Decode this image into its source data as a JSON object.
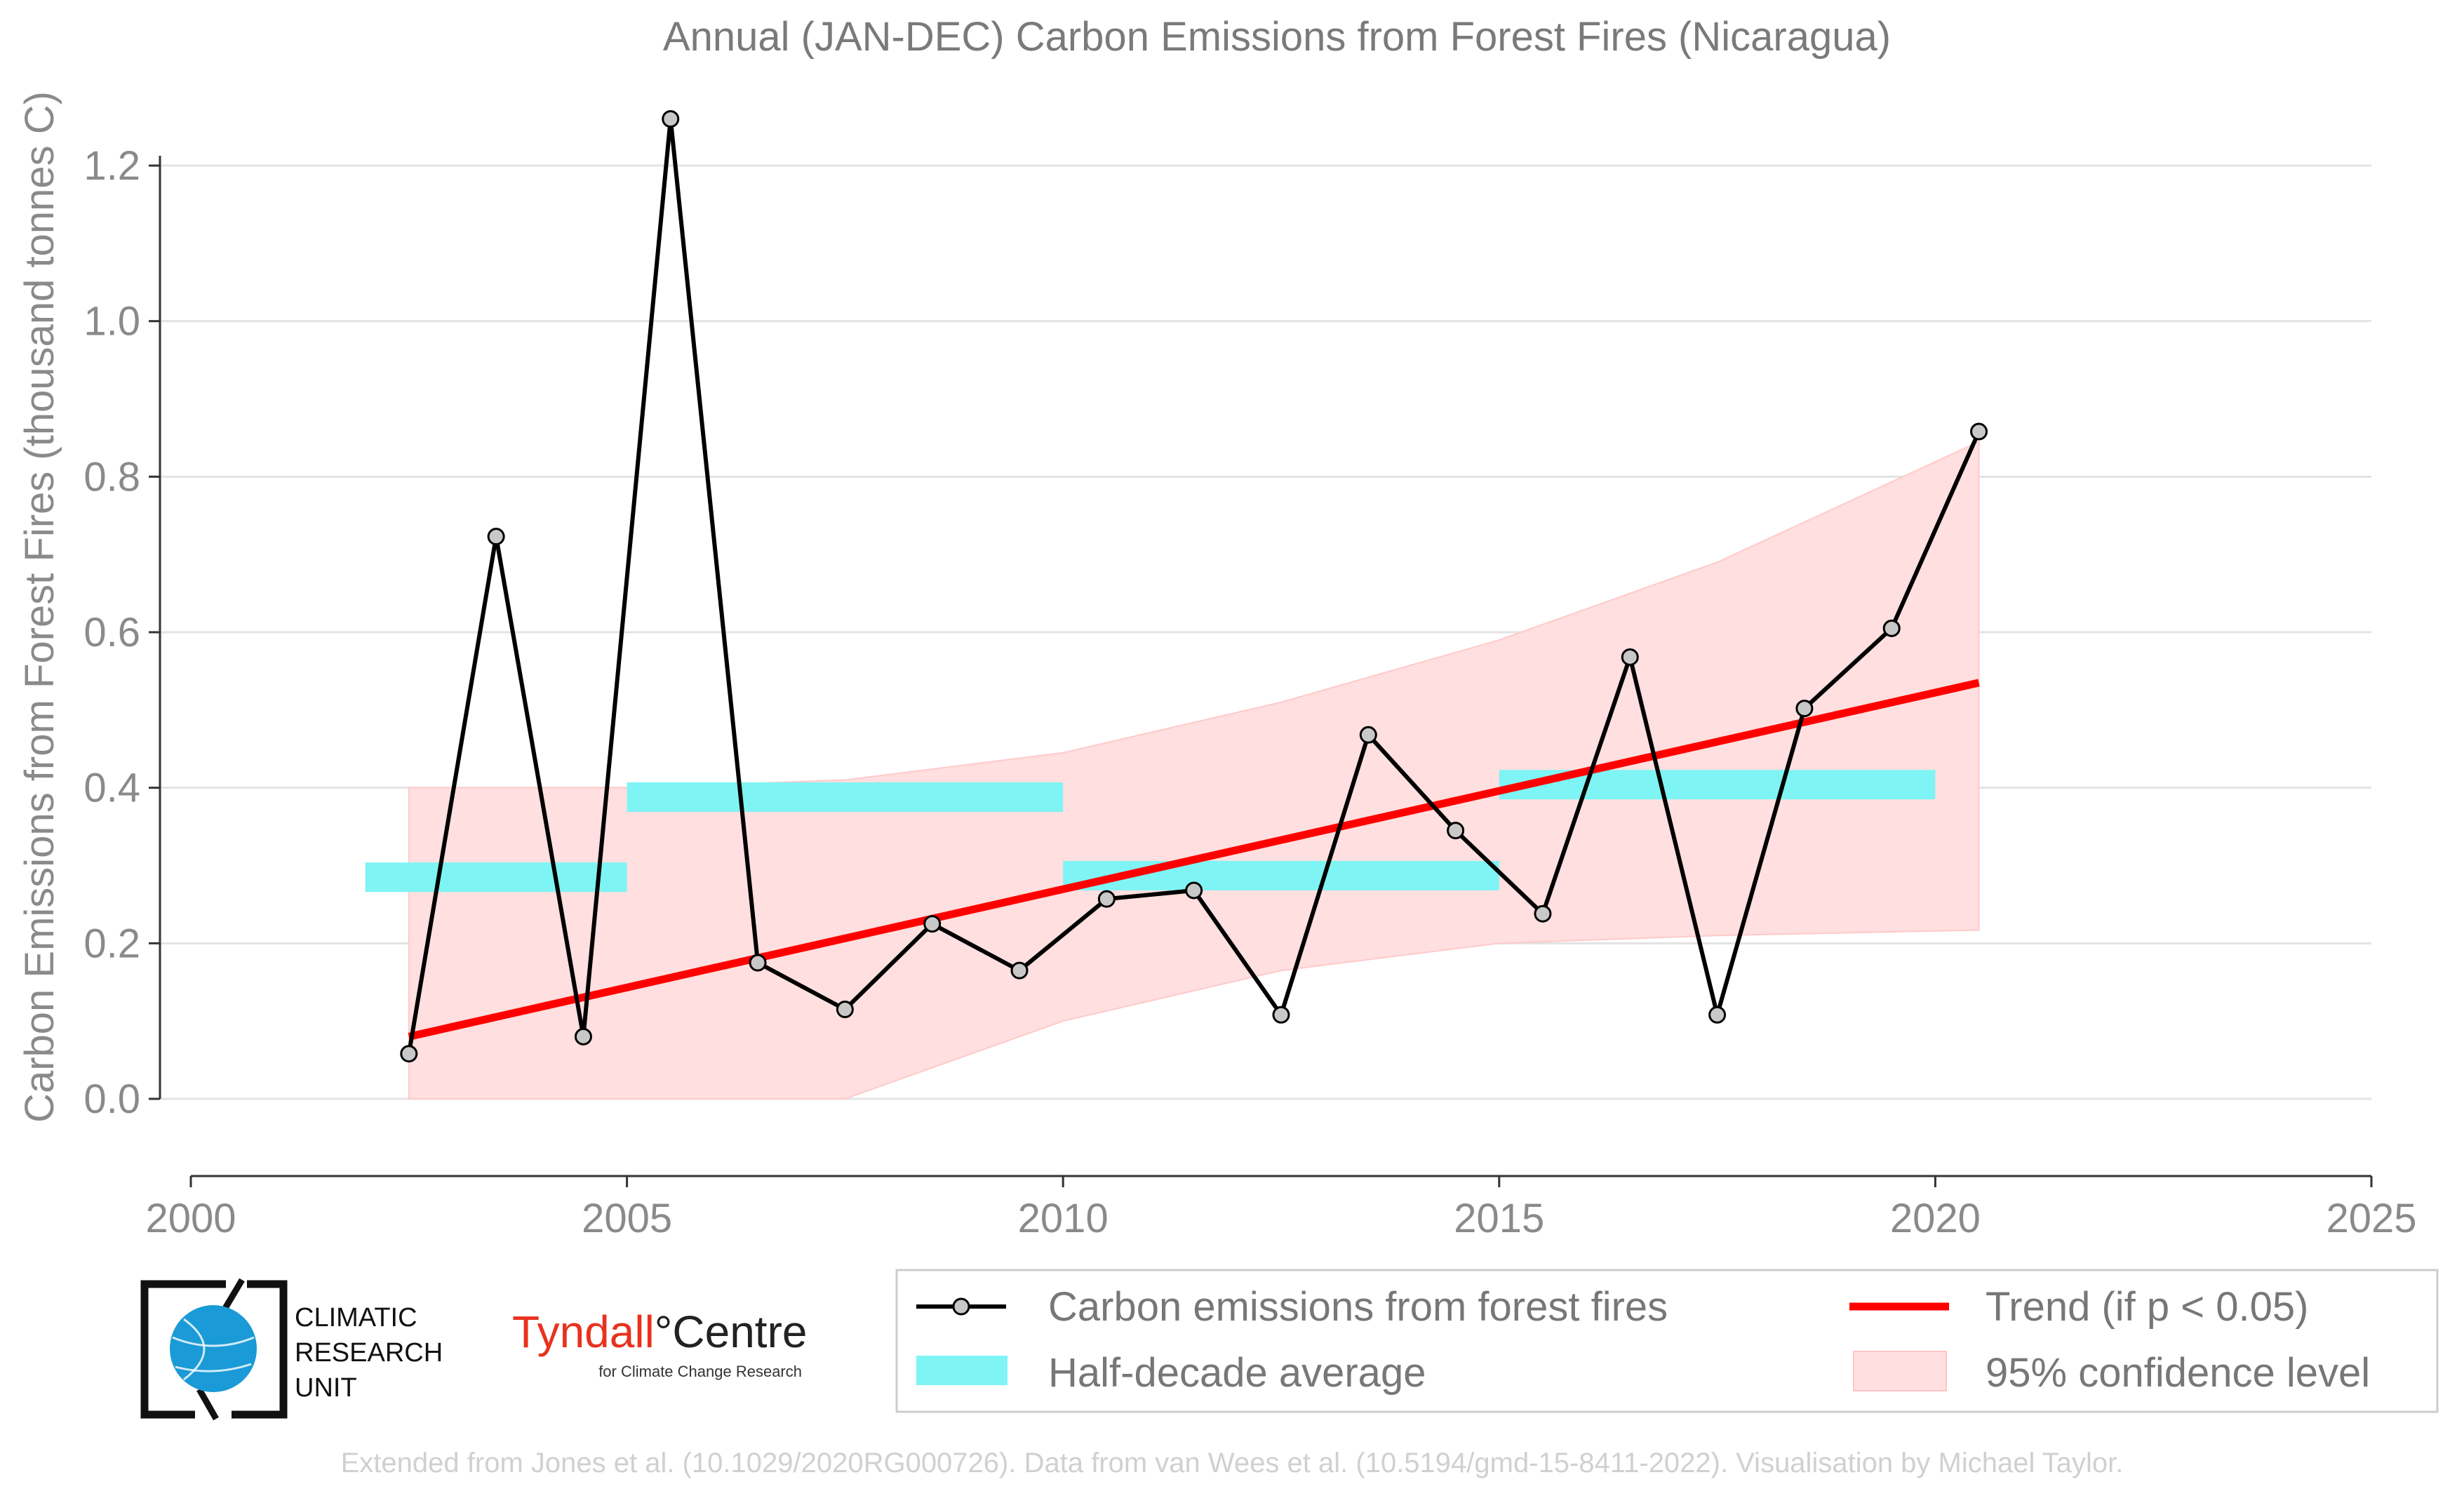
{
  "chart_data": {
    "type": "line",
    "title": "Annual (JAN-DEC) Carbon Emissions from Forest Fires (Nicaragua)",
    "xlabel": "",
    "ylabel": "Carbon Emissions from Forest Fires (thousand tonnes C)",
    "xlim": [
      2000,
      2025
    ],
    "ylim": [
      -0.1,
      1.3
    ],
    "xticks": [
      2000,
      2005,
      2010,
      2015,
      2020,
      2025
    ],
    "xtick_labels": [
      "2000",
      "2005",
      "2010",
      "2015",
      "2020",
      "2025"
    ],
    "yticks": [
      0.0,
      0.2,
      0.4,
      0.6,
      0.8,
      1.0,
      1.2
    ],
    "ytick_labels": [
      "0.0",
      "0.2",
      "0.4",
      "0.6",
      "0.8",
      "1.0",
      "1.2"
    ],
    "grid": "horizontal",
    "series": [
      {
        "name": "Carbon emissions from forest fires",
        "kind": "line-markers",
        "color": "#000000",
        "marker_color": "#c8c8c8",
        "x": [
          2002.5,
          2003.5,
          2004.5,
          2005.5,
          2006.5,
          2007.5,
          2008.5,
          2009.5,
          2010.5,
          2011.5,
          2012.5,
          2013.5,
          2014.5,
          2015.5,
          2016.5,
          2017.5,
          2018.5,
          2019.5,
          2020.5
        ],
        "y": [
          0.058,
          0.723,
          0.08,
          1.26,
          0.175,
          0.115,
          0.225,
          0.165,
          0.257,
          0.268,
          0.108,
          0.468,
          0.345,
          0.238,
          0.568,
          0.108,
          0.502,
          0.605,
          0.858
        ]
      },
      {
        "name": "Half-decade average",
        "kind": "bars",
        "color": "#7ff4f4",
        "segments": [
          {
            "x": [
              2002,
              2005
            ],
            "y": 0.285
          },
          {
            "x": [
              2005,
              2010
            ],
            "y": 0.388
          },
          {
            "x": [
              2010,
              2015
            ],
            "y": 0.287
          },
          {
            "x": [
              2015,
              2020
            ],
            "y": 0.404
          }
        ]
      },
      {
        "name": "Trend (if p < 0.05)",
        "kind": "line",
        "color": "#ff0000",
        "x": [
          2002.5,
          2020.5
        ],
        "y": [
          0.08,
          0.535
        ]
      },
      {
        "name": "95% confidence level",
        "kind": "band",
        "color": "#ffdfdf",
        "x": [
          2002.5,
          2005,
          2007.5,
          2010,
          2012.5,
          2015,
          2017.5,
          2020.5
        ],
        "upper": [
          0.4,
          0.4,
          0.41,
          0.445,
          0.51,
          0.59,
          0.69,
          0.845
        ],
        "lower": [
          0.0,
          0.0,
          0.0,
          0.1,
          0.165,
          0.2,
          0.21,
          0.217
        ]
      }
    ],
    "legend_position": "bottom-right"
  },
  "legend": {
    "items": [
      {
        "label": "Carbon emissions from forest fires"
      },
      {
        "label": "Trend (if p < 0.05)"
      },
      {
        "label": "Half-decade average"
      },
      {
        "label": "95% confidence level"
      }
    ]
  },
  "logos": {
    "cru": {
      "lines": [
        "CLIMATIC",
        "RESEARCH",
        "UNIT"
      ],
      "color": "#1a9ad6"
    },
    "tyndall": {
      "name": "Tyndall",
      "degree": "°",
      "centre": "Centre",
      "sub": "for Climate Change Research",
      "color": "#e8321e"
    }
  },
  "footer": "Extended from Jones et al. (10.1029/2020RG000726). Data from van Wees et al. (10.5194/gmd-15-8411-2022). Visualisation by Michael Taylor."
}
